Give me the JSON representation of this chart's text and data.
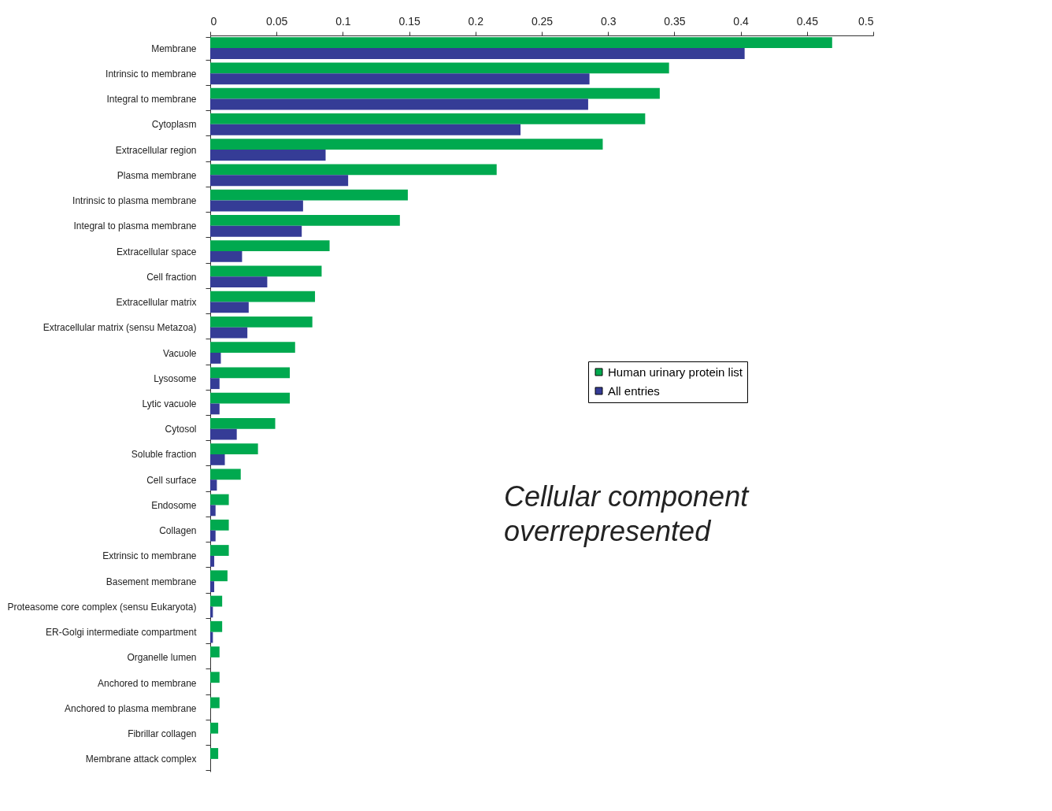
{
  "chart_data": {
    "type": "bar",
    "orientation": "horizontal",
    "categories": [
      "Membrane",
      "Intrinsic to membrane",
      "Integral to membrane",
      "Cytoplasm",
      "Extracellular region",
      "Plasma membrane",
      "Intrinsic to plasma membrane",
      "Integral to plasma membrane",
      "Extracellular space",
      "Cell fraction",
      "Extracellular matrix",
      "Extracellular matrix (sensu Metazoa)",
      "Vacuole",
      "Lysosome",
      "Lytic vacuole",
      "Cytosol",
      "Soluble fraction",
      "Cell surface",
      "Endosome",
      "Collagen",
      "Extrinsic to membrane",
      "Basement membrane",
      "Proteasome core complex (sensu Eukaryota)",
      "ER-Golgi intermediate compartment",
      "Organelle lumen",
      "Anchored to membrane",
      "Anchored to plasma membrane",
      "Fibrillar collagen",
      "Membrane attack complex"
    ],
    "series": [
      {
        "name": "Human urinary protein list",
        "color": "#00a94f",
        "values": [
          0.469,
          0.346,
          0.339,
          0.328,
          0.296,
          0.216,
          0.149,
          0.143,
          0.09,
          0.084,
          0.079,
          0.077,
          0.064,
          0.06,
          0.06,
          0.049,
          0.036,
          0.023,
          0.014,
          0.014,
          0.014,
          0.013,
          0.009,
          0.009,
          0.007,
          0.007,
          0.007,
          0.006,
          0.006
        ]
      },
      {
        "name": "All entries",
        "color": "#353c96",
        "values": [
          0.403,
          0.286,
          0.285,
          0.234,
          0.087,
          0.104,
          0.07,
          0.069,
          0.024,
          0.043,
          0.029,
          0.028,
          0.008,
          0.007,
          0.007,
          0.02,
          0.011,
          0.005,
          0.004,
          0.004,
          0.003,
          0.003,
          0.002,
          0.002,
          0,
          0,
          0,
          0,
          0
        ]
      }
    ],
    "xlim": [
      0,
      0.5
    ],
    "xticks": [
      0,
      0.05,
      0.1,
      0.15,
      0.2,
      0.25,
      0.3,
      0.35,
      0.4,
      0.45,
      0.5
    ],
    "legend": "right",
    "annotations": [
      "Cellular component overrepresented"
    ]
  }
}
